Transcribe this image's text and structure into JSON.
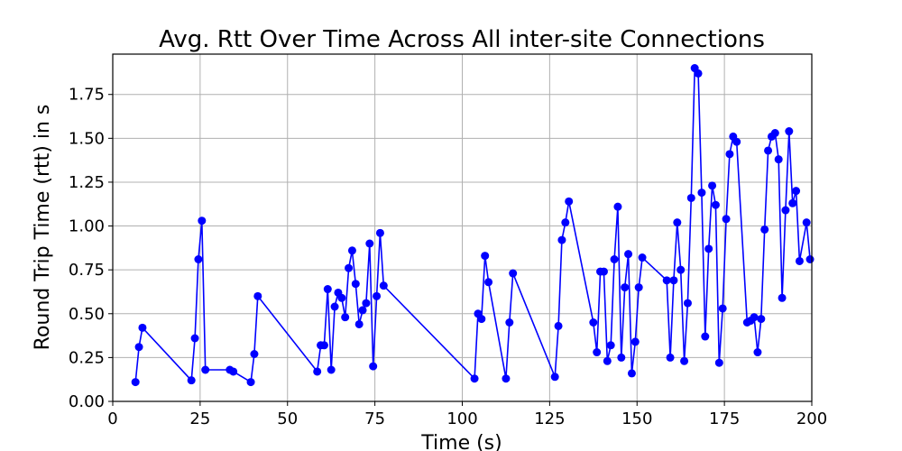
{
  "chart_data": {
    "type": "line",
    "title": "Avg. Rtt Over Time Across All inter-site Connections",
    "xlabel": "Time (s)",
    "ylabel": "Round Trip Time (rtt) in s",
    "xlim": [
      0,
      200
    ],
    "ylim": [
      0,
      1.98
    ],
    "xticks": [
      0,
      25,
      50,
      75,
      100,
      125,
      150,
      175,
      200
    ],
    "yticks": [
      0.0,
      0.25,
      0.5,
      0.75,
      1.0,
      1.25,
      1.5,
      1.75
    ],
    "ytick_labels": [
      "0.00",
      "0.25",
      "0.50",
      "0.75",
      "1.00",
      "1.25",
      "1.50",
      "1.75"
    ],
    "grid": true,
    "series": [
      {
        "color": "#0000ff",
        "marker": "circle",
        "x": [
          6.5,
          7.5,
          8.5,
          22.5,
          23.5,
          24.5,
          25.5,
          26.5,
          33.5,
          34.5,
          39.5,
          40.5,
          41.5,
          58.5,
          59.5,
          60.5,
          61.5,
          62.5,
          63.5,
          64.5,
          65.5,
          66.5,
          67.5,
          68.5,
          69.5,
          70.5,
          71.5,
          72.5,
          73.5,
          74.5,
          75.5,
          76.5,
          77.5,
          103.5,
          104.5,
          105.5,
          106.5,
          107.5,
          112.5,
          113.5,
          114.5,
          126.5,
          127.5,
          128.5,
          129.5,
          130.5,
          137.5,
          138.5,
          139.5,
          140.5,
          141.5,
          142.5,
          143.5,
          144.5,
          145.5,
          146.5,
          147.5,
          148.5,
          149.5,
          150.5,
          151.5,
          158.5,
          159.5,
          160.5,
          161.5,
          162.5,
          163.5,
          164.5,
          165.5,
          166.5,
          167.5,
          168.5,
          169.5,
          170.5,
          171.5,
          172.5,
          173.5,
          174.5,
          175.5,
          176.5,
          177.5,
          178.5,
          181.5,
          182.5,
          183.5,
          184.5,
          185.5,
          186.5,
          187.5,
          188.5,
          189.5,
          190.5,
          191.5,
          192.5,
          193.5,
          194.5,
          195.5,
          196.5,
          198.5,
          199.5
        ],
        "y": [
          0.11,
          0.31,
          0.42,
          0.12,
          0.36,
          0.81,
          1.03,
          0.18,
          0.18,
          0.17,
          0.11,
          0.27,
          0.6,
          0.17,
          0.32,
          0.32,
          0.64,
          0.18,
          0.54,
          0.62,
          0.59,
          0.48,
          0.76,
          0.86,
          0.67,
          0.44,
          0.52,
          0.56,
          0.9,
          0.2,
          0.6,
          0.96,
          0.66,
          0.13,
          0.5,
          0.47,
          0.83,
          0.68,
          0.13,
          0.45,
          0.73,
          0.14,
          0.43,
          0.92,
          1.02,
          1.14,
          0.45,
          0.28,
          0.74,
          0.74,
          0.23,
          0.32,
          0.81,
          1.11,
          0.25,
          0.65,
          0.84,
          0.16,
          0.34,
          0.65,
          0.82,
          0.69,
          0.25,
          0.69,
          1.02,
          0.75,
          0.23,
          0.56,
          1.16,
          1.9,
          1.87,
          1.19,
          0.37,
          0.87,
          1.23,
          1.12,
          0.22,
          0.53,
          1.04,
          1.41,
          1.51,
          1.48,
          0.45,
          0.46,
          0.48,
          0.28,
          0.47,
          0.98,
          1.43,
          1.51,
          1.53,
          1.38,
          0.59,
          1.09,
          1.54,
          1.13,
          1.2,
          0.8,
          1.02,
          0.81
        ]
      }
    ]
  }
}
